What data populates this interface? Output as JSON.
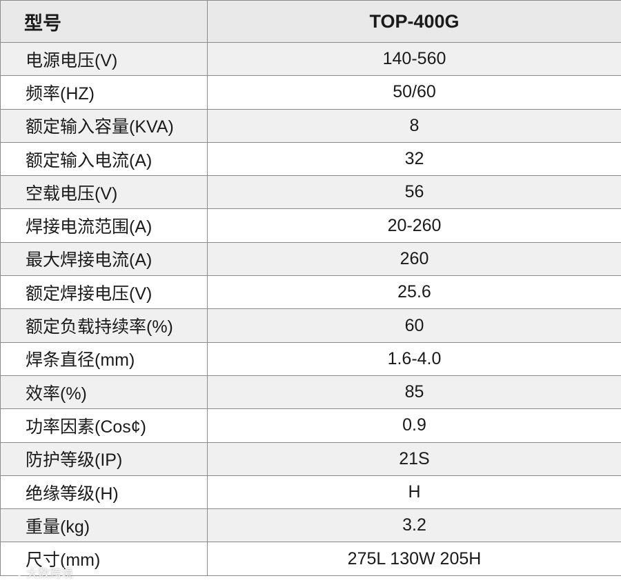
{
  "table": {
    "header": {
      "label": "型号",
      "model": "TOP-400G"
    },
    "rows": [
      {
        "label": "电源电压(V)",
        "value": "140-560"
      },
      {
        "label": "频率(HZ)",
        "value": "50/60"
      },
      {
        "label": "额定输入容量(KVA)",
        "value": "8"
      },
      {
        "label": "额定输入电流(A)",
        "value": "32"
      },
      {
        "label": "空载电压(V)",
        "value": "56"
      },
      {
        "label": "焊接电流范围(A)",
        "value": "20-260"
      },
      {
        "label": "最大焊接电流(A)",
        "value": "260"
      },
      {
        "label": "额定焊接电压(V)",
        "value": "25.6"
      },
      {
        "label": "额定负载持续率(%)",
        "value": "60"
      },
      {
        "label": "焊条直径(mm)",
        "value": "1.6-4.0"
      },
      {
        "label": "效率(%)",
        "value": "85"
      },
      {
        "label": "功率因素(Cos¢)",
        "value": "0.9"
      },
      {
        "label": "防护等级(IP)",
        "value": "21S"
      },
      {
        "label": "绝缘等级(H)",
        "value": "H"
      },
      {
        "label": "重量(kg)",
        "value": "3.2"
      },
      {
        "label": "尺寸(mm)",
        "value": "275L  130W  205H"
      }
    ]
  },
  "watermark": {
    "text": "大数跨境",
    "icon": "logo-icon"
  },
  "colors": {
    "header_bg": "#e9e9e9",
    "odd_row_bg": "#f0f0f0",
    "even_row_bg": "#ffffff",
    "border": "#8a8a8a",
    "text": "#1a1a1a"
  }
}
